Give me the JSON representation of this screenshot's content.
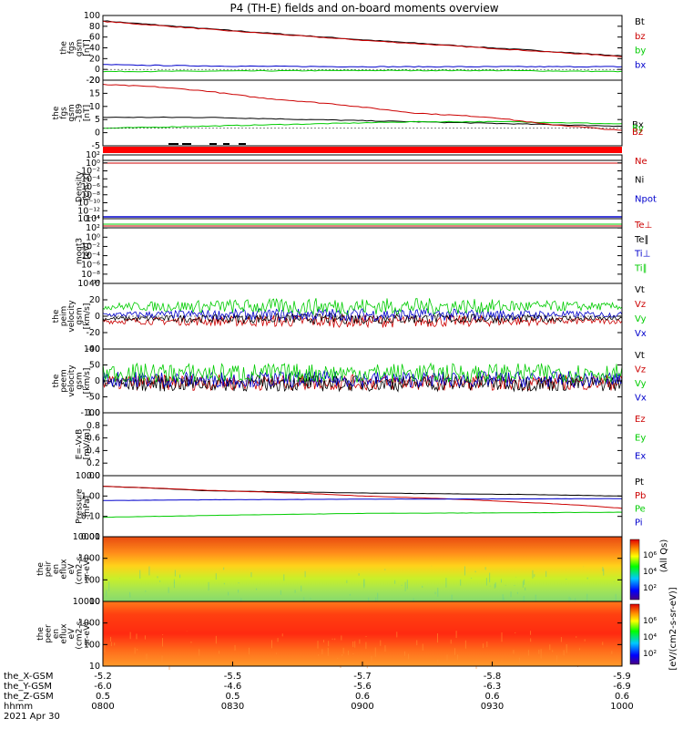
{
  "chart_data": {
    "title": "P4 (TH-E) fields and on-board moments overview",
    "type": "line",
    "panels": [
      {
        "id": "fgs",
        "type": "line",
        "ylabel": [
          "the",
          "fgs",
          "gsm",
          "[nT]"
        ],
        "ylim": [
          -20,
          100
        ],
        "ticks": [
          "100",
          "80",
          "60",
          "40",
          "20",
          "0",
          "-20"
        ],
        "series": [
          {
            "name": "Bt",
            "color": "#000000",
            "x": [
              0,
              0.25,
              0.5,
              0.75,
              1
            ],
            "values": [
              90,
              72,
              55,
              40,
              25
            ]
          },
          {
            "name": "bz",
            "color": "#cc0000",
            "x": [
              0,
              0.25,
              0.5,
              0.75,
              1
            ],
            "values": [
              89,
              71,
              54,
              39,
              24
            ]
          },
          {
            "name": "by",
            "color": "#00cc00",
            "x": [
              0,
              0.25,
              0.5,
              0.75,
              1
            ],
            "values": [
              -4,
              -3,
              -2,
              -2,
              -4
            ]
          },
          {
            "name": "bx",
            "color": "#0000cc",
            "x": [
              0,
              0.05,
              0.25,
              0.5,
              0.75,
              1
            ],
            "values": [
              9,
              8,
              6,
              5,
              5,
              5
            ]
          }
        ]
      },
      {
        "id": "fgs-dsl",
        "type": "line",
        "ylabel": [
          "the",
          "fgs",
          "gsm",
          "-189",
          "[nT]"
        ],
        "ylim": [
          -8,
          22
        ],
        "ticks": [
          "20",
          "15",
          "10",
          "5",
          "0",
          "-5"
        ],
        "legend": [
          "Bx",
          "By",
          "Bz"
        ],
        "series": [
          {
            "name": "Bx",
            "color": "#000000",
            "x": [
              0,
              0.2,
              0.4,
              0.6,
              0.8,
              1
            ],
            "values": [
              5,
              5,
              4,
              3,
              2,
              1
            ]
          },
          {
            "name": "By",
            "color": "#00cc00",
            "x": [
              0,
              0.2,
              0.4,
              0.6,
              0.8,
              1
            ],
            "values": [
              0,
              1,
              2,
              3,
              3,
              2
            ]
          },
          {
            "name": "Bz",
            "color": "#cc0000",
            "x": [
              0,
              0.1,
              0.2,
              0.3,
              0.45,
              0.6,
              0.75,
              0.85,
              1
            ],
            "values": [
              20,
              19,
              17,
              14,
              11,
              7,
              5,
              2,
              -1
            ]
          }
        ]
      },
      {
        "id": "density",
        "type": "line",
        "ylabel": [
          "Density",
          "[cm-3]"
        ],
        "ticks": [
          "10²",
          "10⁰",
          "10⁻²",
          "10⁻⁴",
          "10⁻⁶",
          "10⁻⁸",
          "10⁻¹⁰",
          "10⁻¹²",
          "10⁻¹⁴"
        ],
        "legend": [
          "Ne",
          "Ni",
          "Npot"
        ],
        "legend_colors": [
          "#cc0000",
          "#000000",
          "#0000cc"
        ]
      },
      {
        "id": "temperature",
        "type": "line",
        "ylabel": [
          "moqt3",
          "[eV]"
        ],
        "ticks": [
          "10⁴",
          "10²",
          "10⁰",
          "10⁻²",
          "10⁻⁴",
          "10⁻⁶",
          "10⁻⁸",
          "10⁻¹⁰"
        ],
        "legend": [
          "Te⊥",
          "Te∥",
          "Ti⊥",
          "Ti∥"
        ],
        "legend_colors": [
          "#cc0000",
          "#000000",
          "#0000cc",
          "#00cc00"
        ]
      },
      {
        "id": "peim-velocity",
        "type": "line",
        "ylabel": [
          "the",
          "peim",
          "velocity",
          "gsm",
          "[km/s]"
        ],
        "ylim": [
          -40,
          40
        ],
        "ticks": [
          "40",
          "20",
          "0",
          "-20",
          "-40"
        ],
        "legend": [
          "Vt",
          "Vz",
          "Vy",
          "Vx"
        ],
        "legend_colors": [
          "#000000",
          "#cc0000",
          "#00cc00",
          "#0000cc"
        ]
      },
      {
        "id": "peem-velocity",
        "type": "line",
        "ylabel": [
          "the",
          "peem",
          "velocity",
          "gsm",
          "[km/s]"
        ],
        "ylim": [
          -100,
          100
        ],
        "ticks": [
          "100",
          "50",
          "0",
          "-50",
          "-100"
        ],
        "legend": [
          "Vt",
          "Vz",
          "Vy",
          "Vx"
        ],
        "legend_colors": [
          "#000000",
          "#cc0000",
          "#00cc00",
          "#0000cc"
        ]
      },
      {
        "id": "efield",
        "type": "line",
        "ylabel": [
          "E=-VxB",
          "[mV/m]"
        ],
        "ylim": [
          0,
          1
        ],
        "ticks": [
          "1.0",
          "0.8",
          "0.6",
          "0.4",
          "0.2",
          "0.0"
        ],
        "legend": [
          "Ez",
          "Ey",
          "Ex"
        ],
        "legend_colors": [
          "#cc0000",
          "#00cc00",
          "#0000cc"
        ]
      },
      {
        "id": "pressure",
        "type": "line",
        "ylabel": [
          "Pressure",
          "[nPa]"
        ],
        "ticks": [
          "10.00",
          "1.00",
          "0.10",
          "0.01"
        ],
        "legend": [
          "Pt",
          "Pb",
          "Pe",
          "Pi"
        ],
        "legend_colors": [
          "#000000",
          "#cc0000",
          "#00cc00",
          "#0000cc"
        ],
        "series": [
          {
            "name": "Pt",
            "color": "#000000",
            "x": [
              0,
              0.2,
              0.5,
              0.8,
              1
            ],
            "values": [
              3.0,
              1.8,
              1.4,
              1.2,
              1.0
            ]
          },
          {
            "name": "Pb",
            "color": "#cc0000",
            "x": [
              0,
              0.2,
              0.5,
              0.8,
              1
            ],
            "values": [
              3.0,
              1.9,
              1.0,
              0.5,
              0.25
            ]
          },
          {
            "name": "Pe",
            "color": "#00cc00",
            "x": [
              0,
              0.2,
              0.5,
              0.8,
              1
            ],
            "values": [
              0.09,
              0.11,
              0.14,
              0.15,
              0.16
            ]
          },
          {
            "name": "Pi",
            "color": "#0000cc",
            "x": [
              0,
              0.2,
              0.5,
              0.8,
              1
            ],
            "values": [
              0.6,
              0.65,
              0.7,
              0.72,
              0.75
            ]
          }
        ]
      },
      {
        "id": "peir-flux",
        "type": "heatmap",
        "ylabel": [
          "the",
          "peir",
          "en",
          "eflux",
          "eV",
          "(cm2-s-",
          "sr-eV)"
        ],
        "ticks": [
          "10000",
          "1000",
          "100",
          "10"
        ]
      },
      {
        "id": "peer-flux",
        "type": "heatmap",
        "ylabel": [
          "the",
          "peer",
          "en",
          "eflux",
          "eV",
          "(cm2-s-",
          "sr-eV)"
        ],
        "ticks": [
          "10000",
          "1000",
          "100",
          "10"
        ]
      }
    ],
    "colorbar": {
      "label": "[eV/(cm2-s-sr-eV)]",
      "label2": "(All Qs)",
      "ticks_top": [
        "10⁶",
        "10⁴",
        "10²"
      ],
      "ticks_bottom": [
        "10⁶",
        "10⁴",
        "10²"
      ]
    },
    "xaxis": {
      "row_labels": [
        "the_X-GSM",
        "the_Y-GSM",
        "the_Z-GSM",
        "hhmm",
        "2021 Apr 30"
      ],
      "columns": [
        {
          "x": "-5.2",
          "y": "-6.0",
          "z": "0.5",
          "t": "0800"
        },
        {
          "x": "-5.5",
          "y": "-4.6",
          "z": "0.5",
          "t": "0830"
        },
        {
          "x": "-5.7",
          "y": "-5.6",
          "z": "0.6",
          "t": "0900"
        },
        {
          "x": "-5.8",
          "y": "-6.3",
          "z": "0.6",
          "t": "0930"
        },
        {
          "x": "-5.9",
          "y": "-6.9",
          "z": "0.6",
          "t": "1000"
        }
      ]
    }
  }
}
